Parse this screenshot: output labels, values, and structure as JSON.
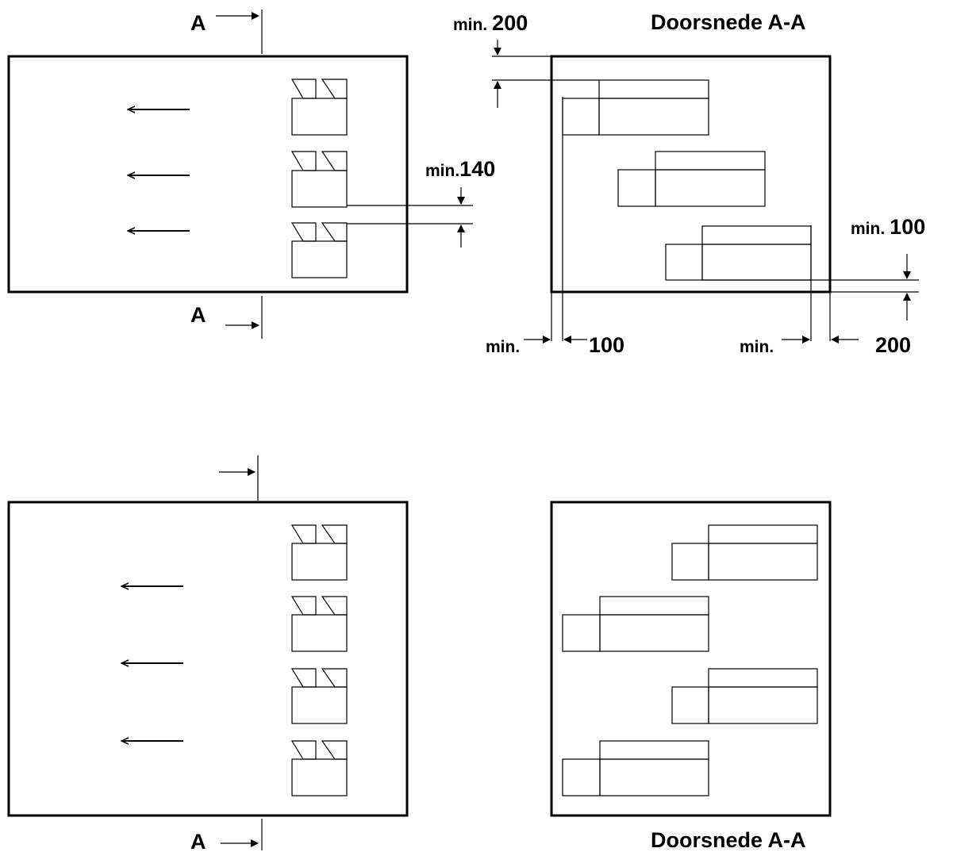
{
  "top": {
    "section_marker_top": "A",
    "section_marker_bottom": "A",
    "section_title": "Doorsnede A-A",
    "dim_top": {
      "prefix": "min.",
      "value": "200"
    },
    "dim_vertical_gap": {
      "prefix": "min.",
      "value": "140"
    },
    "dim_right": {
      "prefix": "min.",
      "value": "100"
    },
    "dim_bottom_left": {
      "prefix": "min.",
      "value": "100"
    },
    "dim_bottom_right": {
      "prefix": "min.",
      "value": "200"
    }
  },
  "bottom": {
    "section_marker_bottom": "A",
    "section_title": "Doorsnede A-A"
  }
}
